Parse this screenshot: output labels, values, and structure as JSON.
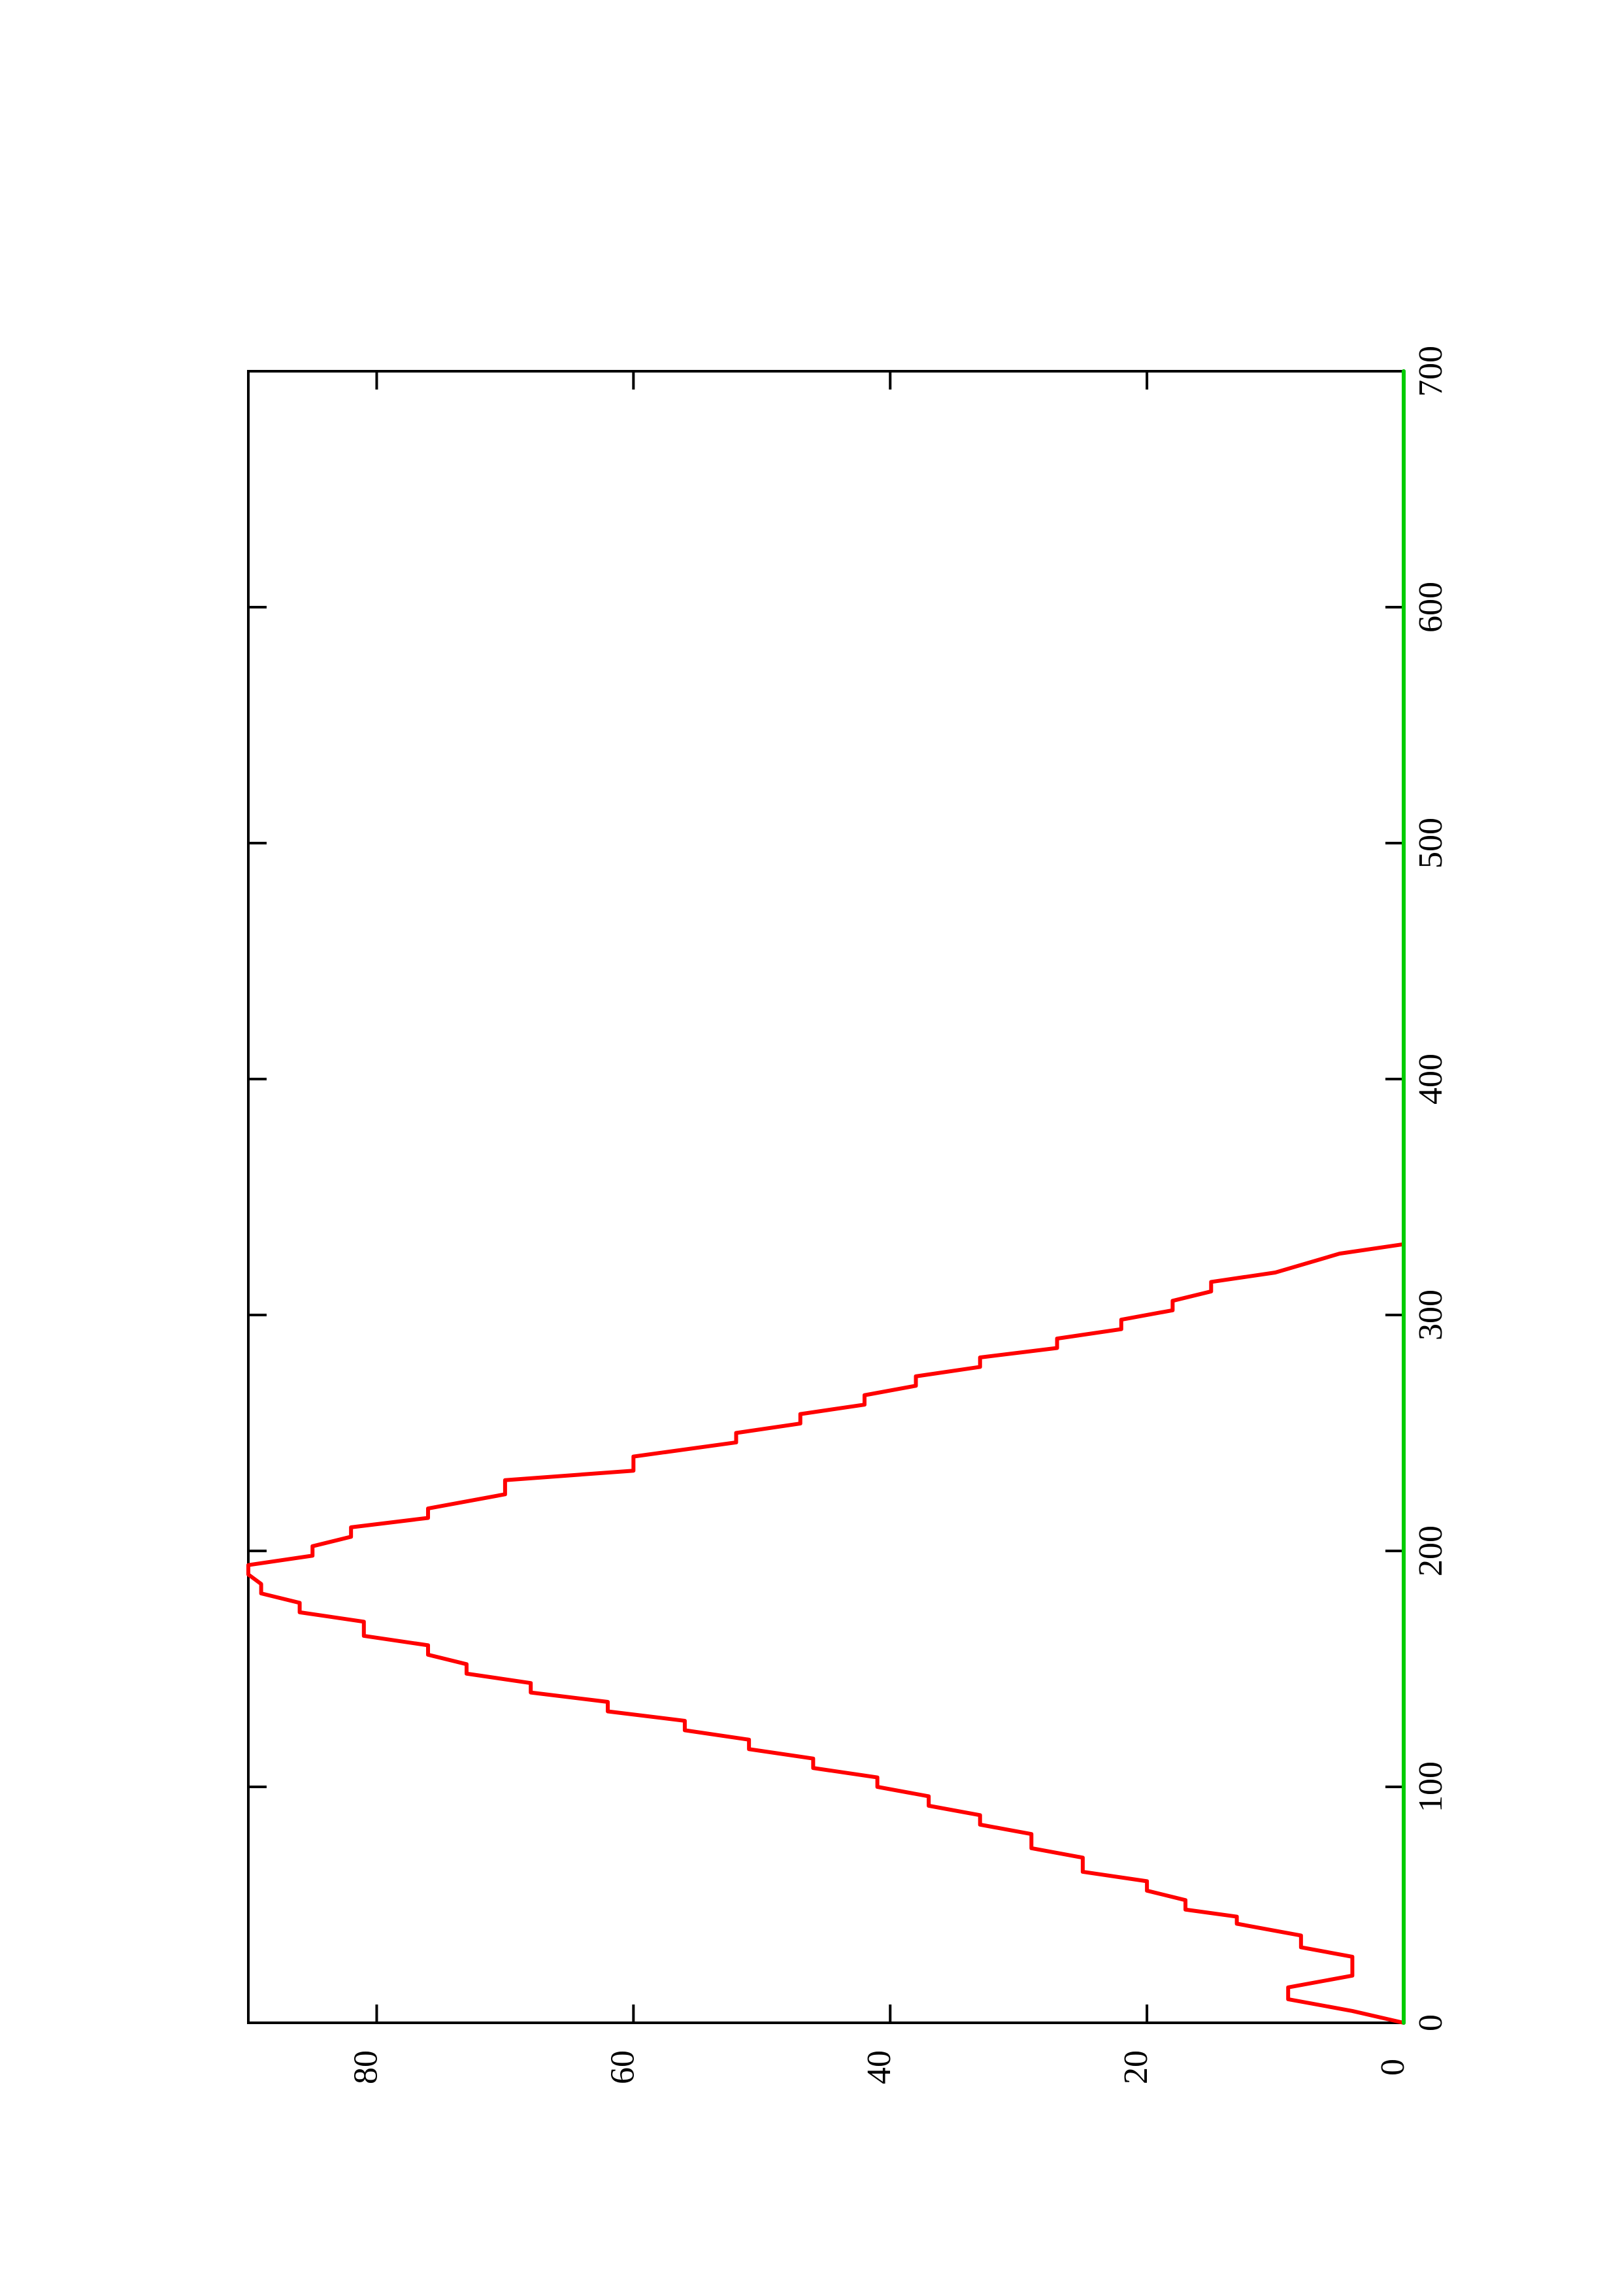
{
  "chart_data": {
    "type": "line",
    "orientation": "rotated-90-counterclockwise",
    "title": "",
    "xlabel": "",
    "ylabel": "",
    "xlim": [
      0,
      700
    ],
    "ylim": [
      0,
      90
    ],
    "x_ticks": [
      "0",
      "100",
      "200",
      "300",
      "400",
      "500",
      "600",
      "700"
    ],
    "y_ticks": [
      "0",
      "20",
      "40",
      "60",
      "80"
    ],
    "grid": false,
    "legend": "none",
    "series": [
      {
        "color": "#ff0000",
        "style": "step",
        "points": [
          [
            0,
            0
          ],
          [
            5,
            4
          ],
          [
            10,
            9
          ],
          [
            15,
            9
          ],
          [
            20,
            4
          ],
          [
            28,
            4
          ],
          [
            32,
            8
          ],
          [
            37,
            8
          ],
          [
            42,
            13
          ],
          [
            45,
            13
          ],
          [
            48,
            17
          ],
          [
            52,
            17
          ],
          [
            56,
            20
          ],
          [
            60,
            20
          ],
          [
            64,
            25
          ],
          [
            70,
            25
          ],
          [
            74,
            29
          ],
          [
            80,
            29
          ],
          [
            84,
            33
          ],
          [
            88,
            33
          ],
          [
            92,
            37
          ],
          [
            96,
            37
          ],
          [
            100,
            41
          ],
          [
            104,
            41
          ],
          [
            108,
            46
          ],
          [
            112,
            46
          ],
          [
            116,
            51
          ],
          [
            120,
            51
          ],
          [
            124,
            56
          ],
          [
            128,
            56
          ],
          [
            132,
            62
          ],
          [
            136,
            62
          ],
          [
            140,
            68
          ],
          [
            144,
            68
          ],
          [
            148,
            73
          ],
          [
            152,
            73
          ],
          [
            156,
            76
          ],
          [
            160,
            76
          ],
          [
            164,
            81
          ],
          [
            170,
            81
          ],
          [
            174,
            86
          ],
          [
            178,
            86
          ],
          [
            182,
            89
          ],
          [
            186,
            89
          ],
          [
            190,
            90
          ],
          [
            194,
            90
          ],
          [
            198,
            85
          ],
          [
            202,
            85
          ],
          [
            206,
            82
          ],
          [
            210,
            82
          ],
          [
            214,
            76
          ],
          [
            218,
            76
          ],
          [
            224,
            70
          ],
          [
            230,
            70
          ],
          [
            234,
            60
          ],
          [
            240,
            60
          ],
          [
            246,
            52
          ],
          [
            250,
            52
          ],
          [
            254,
            47
          ],
          [
            258,
            47
          ],
          [
            262,
            42
          ],
          [
            266,
            42
          ],
          [
            270,
            38
          ],
          [
            274,
            38
          ],
          [
            278,
            33
          ],
          [
            282,
            33
          ],
          [
            286,
            27
          ],
          [
            290,
            27
          ],
          [
            294,
            22
          ],
          [
            298,
            22
          ],
          [
            302,
            18
          ],
          [
            306,
            18
          ],
          [
            310,
            15
          ],
          [
            314,
            15
          ],
          [
            318,
            10
          ],
          [
            326,
            5
          ],
          [
            330,
            0
          ]
        ]
      },
      {
        "color": "#000000",
        "style": "line",
        "points": [
          [
            0,
            0
          ],
          [
            700,
            0
          ]
        ]
      },
      {
        "color": "#00cc00",
        "style": "line",
        "points": [
          [
            0,
            0
          ],
          [
            700,
            0
          ]
        ]
      }
    ]
  }
}
